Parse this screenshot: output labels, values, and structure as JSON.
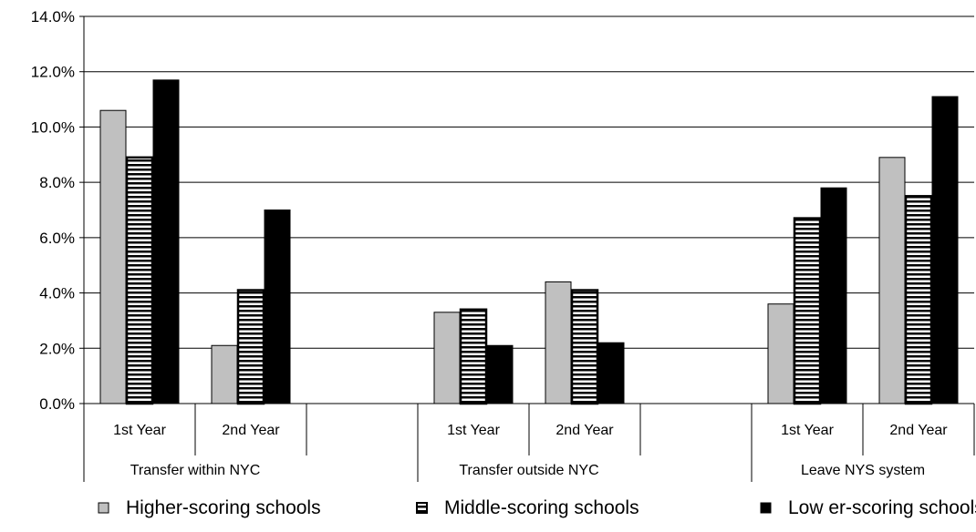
{
  "chart_data": {
    "type": "bar",
    "title": "",
    "xlabel": "",
    "ylabel": "",
    "ylim": [
      0,
      14
    ],
    "y_tick_step": 2,
    "y_tick_labels": [
      "0.0%",
      "2.0%",
      "4.0%",
      "6.0%",
      "8.0%",
      "10.0%",
      "12.0%",
      "14.0%"
    ],
    "grid": true,
    "legend_position": "bottom",
    "groups": [
      {
        "label": "Transfer within NYC",
        "categories": [
          "1st Year",
          "2nd Year"
        ]
      },
      {
        "label": "Transfer outside NYC",
        "categories": [
          "1st Year",
          "2nd Year"
        ]
      },
      {
        "label": "Leave NYS system",
        "categories": [
          "1st Year",
          "2nd Year"
        ]
      }
    ],
    "series": [
      {
        "name": "Higher-scoring schools",
        "fill": "#c0c0c0",
        "pattern": "solid",
        "values": [
          10.6,
          2.1,
          3.3,
          4.4,
          3.6,
          8.9
        ]
      },
      {
        "name": "Middle-scoring schools",
        "fill": "#ffffff",
        "pattern": "horizontal-stripes",
        "values": [
          8.9,
          4.1,
          3.4,
          4.1,
          6.7,
          7.5
        ]
      },
      {
        "name": "Low er-scoring schools",
        "fill": "#000000",
        "pattern": "solid",
        "values": [
          11.7,
          7.0,
          2.1,
          2.2,
          7.8,
          11.1
        ]
      }
    ]
  }
}
